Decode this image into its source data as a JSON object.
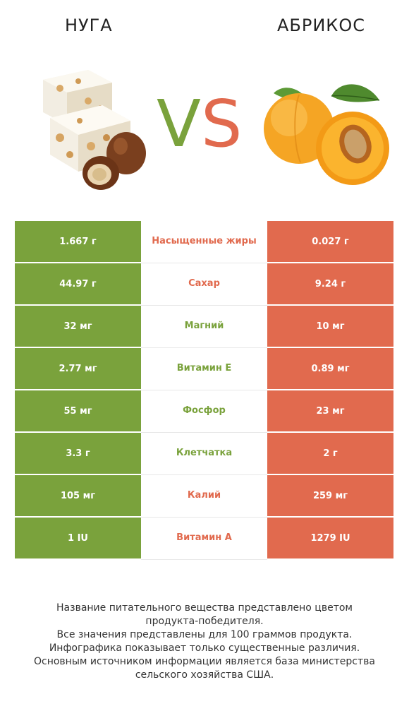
{
  "header": {
    "left_title": "НУГА",
    "right_title": "АБРИКОС",
    "vs_v": "V",
    "vs_s": "S"
  },
  "colors": {
    "winner_left": "#7aa23c",
    "winner_right": "#e16a4e"
  },
  "rows": [
    {
      "left": "1.667 г",
      "name": "Насыщенные жиры",
      "right": "0.027 г",
      "winner": "right"
    },
    {
      "left": "44.97 г",
      "name": "Сахар",
      "right": "9.24 г",
      "winner": "right"
    },
    {
      "left": "32 мг",
      "name": "Магний",
      "right": "10 мг",
      "winner": "left"
    },
    {
      "left": "2.77 мг",
      "name": "Витамин E",
      "right": "0.89 мг",
      "winner": "left"
    },
    {
      "left": "55 мг",
      "name": "Фосфор",
      "right": "23 мг",
      "winner": "left"
    },
    {
      "left": "3.3 г",
      "name": "Клетчатка",
      "right": "2 г",
      "winner": "left"
    },
    {
      "left": "105 мг",
      "name": "Калий",
      "right": "259 мг",
      "winner": "right"
    },
    {
      "left": "1 IU",
      "name": "Витамин A",
      "right": "1279 IU",
      "winner": "right"
    }
  ],
  "footer": {
    "line1": "Название питательного вещества представлено цветом",
    "line2": "продукта-победителя.",
    "line3": "Все значения представлены для 100 граммов продукта.",
    "line4": "Инфографика показывает только существенные различия.",
    "line5": "Основным источником информации является база министерства",
    "line6": "сельского хозяйства США."
  }
}
